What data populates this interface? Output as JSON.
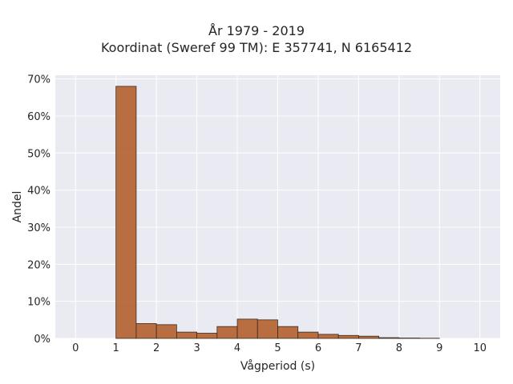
{
  "chart_data": {
    "type": "bar",
    "title": "År 1979 - 2019",
    "subtitle": "Koordinat (Sweref 99 TM): E 357741, N 6165412",
    "xlabel": "Vågperiod (s)",
    "ylabel": "Andel",
    "xlim": [
      -0.5,
      10.5
    ],
    "ylim": [
      0,
      71
    ],
    "xticks": [
      0,
      1,
      2,
      3,
      4,
      5,
      6,
      7,
      8,
      9,
      10
    ],
    "xtick_labels": [
      "0",
      "1",
      "2",
      "3",
      "4",
      "5",
      "6",
      "7",
      "8",
      "9",
      "10"
    ],
    "yticks": [
      0,
      10,
      20,
      30,
      40,
      50,
      60,
      70
    ],
    "ytick_labels": [
      "0%",
      "10%",
      "20%",
      "30%",
      "40%",
      "50%",
      "60%",
      "70%"
    ],
    "bin_width": 0.5,
    "bins": [
      {
        "x0": 1.0,
        "value": 68.0
      },
      {
        "x0": 1.5,
        "value": 4.0
      },
      {
        "x0": 2.0,
        "value": 3.7
      },
      {
        "x0": 2.5,
        "value": 1.7
      },
      {
        "x0": 3.0,
        "value": 1.4
      },
      {
        "x0": 3.5,
        "value": 3.2
      },
      {
        "x0": 4.0,
        "value": 5.2
      },
      {
        "x0": 4.5,
        "value": 5.0
      },
      {
        "x0": 5.0,
        "value": 3.2
      },
      {
        "x0": 5.5,
        "value": 1.7
      },
      {
        "x0": 6.0,
        "value": 1.1
      },
      {
        "x0": 6.5,
        "value": 0.8
      },
      {
        "x0": 7.0,
        "value": 0.6
      },
      {
        "x0": 7.5,
        "value": 0.2
      },
      {
        "x0": 8.0,
        "value": 0.1
      },
      {
        "x0": 8.5,
        "value": 0.05
      }
    ],
    "grid": true,
    "colors": {
      "bar_fill": "#b4602e",
      "bar_edge": "#3a2a1e",
      "plot_bg": "#eaeaf2",
      "grid": "#ffffff"
    }
  }
}
